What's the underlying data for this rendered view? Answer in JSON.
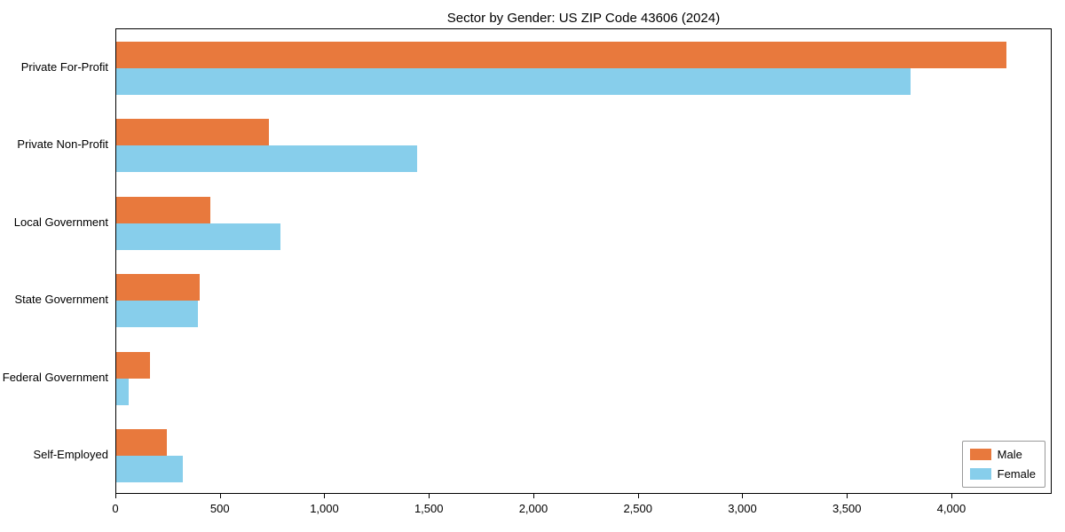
{
  "chart_data": {
    "type": "bar",
    "orientation": "horizontal",
    "title": "Sector by Gender: US ZIP Code 43606 (2024)",
    "categories": [
      "Private For-Profit",
      "Private Non-Profit",
      "Local Government",
      "State Government",
      "Federal Government",
      "Self-Employed"
    ],
    "series": [
      {
        "name": "Male",
        "color": "#e8793d",
        "values": [
          4260,
          730,
          450,
          400,
          160,
          240
        ]
      },
      {
        "name": "Female",
        "color": "#87ceeb",
        "values": [
          3800,
          1440,
          785,
          390,
          60,
          320
        ]
      }
    ],
    "xlim": [
      0,
      4480
    ],
    "x_ticks": [
      0,
      500,
      1000,
      1500,
      2000,
      2500,
      3000,
      3500,
      4000
    ],
    "x_tick_labels": [
      "0",
      "500",
      "1,000",
      "1,500",
      "2,000",
      "2,500",
      "3,000",
      "3,500",
      "4,000"
    ],
    "ylabel": "",
    "xlabel": "",
    "grid": false,
    "legend_position": "lower right"
  }
}
